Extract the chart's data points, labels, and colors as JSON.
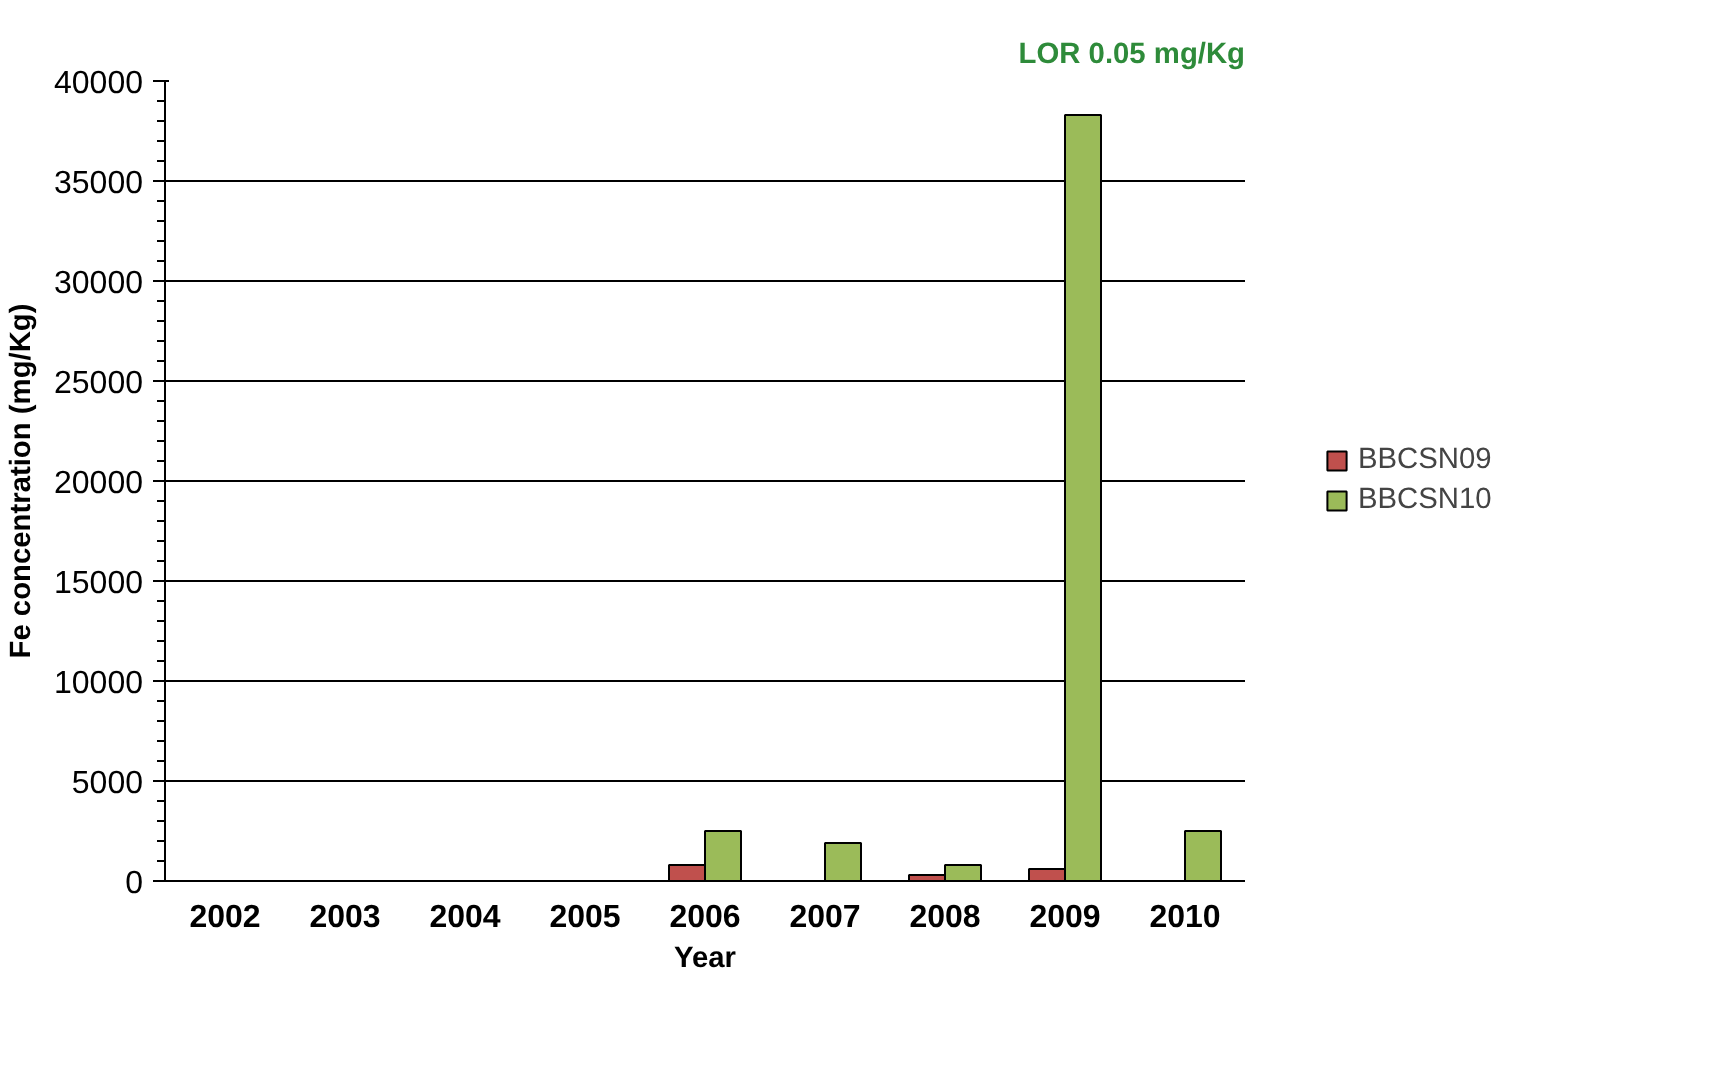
{
  "chart_data": {
    "type": "bar",
    "xlabel": "Year",
    "ylabel": "Fe concentration (mg/Kg)",
    "annotations": [
      "LOR 0.05 mg/Kg"
    ],
    "categories": [
      "2002",
      "2003",
      "2004",
      "2005",
      "2006",
      "2007",
      "2008",
      "2009",
      "2010"
    ],
    "series": [
      {
        "name": "BBCSN09",
        "color": "#c0504d",
        "values": [
          null,
          null,
          null,
          null,
          800,
          null,
          300,
          600,
          null
        ]
      },
      {
        "name": "BBCSN10",
        "color": "#9bbb59",
        "values": [
          null,
          null,
          null,
          null,
          2500,
          1900,
          800,
          38300,
          2500
        ]
      }
    ],
    "ylim": [
      0,
      40000
    ],
    "yticks": [
      0,
      5000,
      10000,
      15000,
      20000,
      25000,
      30000,
      35000,
      40000
    ],
    "grid": "y",
    "legend": "right"
  }
}
